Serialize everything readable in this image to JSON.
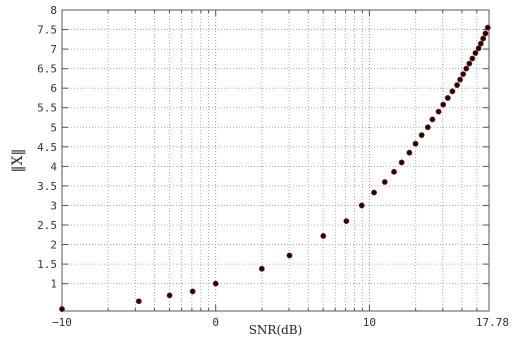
{
  "chart_data": {
    "type": "scatter",
    "title": "",
    "xlabel": "SNR(dB)",
    "ylabel": "‖X‖",
    "xlim": [
      -10,
      17.78
    ],
    "ylim": [
      0.3,
      8
    ],
    "xticks": [
      -10,
      0,
      10,
      17.78
    ],
    "xtick_labels": [
      "−10",
      "0",
      "10",
      "17.78"
    ],
    "yticks": [
      1,
      1.5,
      2,
      2.5,
      3,
      3.5,
      4,
      4.5,
      5,
      5.5,
      6,
      6.5,
      7,
      7.5,
      8
    ],
    "ytick_labels": [
      "1",
      "1.5",
      "2",
      "2.5",
      "3",
      "3.5",
      "4",
      "4.5",
      "5",
      "5.5",
      "6",
      "6.5",
      "7",
      "7.5",
      "8"
    ],
    "x_minor_ticks": [
      -7,
      -5.23,
      -3.98,
      -3.01,
      -2.22,
      -1.55,
      -0.97,
      -0.46,
      3.01,
      4.77,
      6.02,
      6.99,
      7.78,
      8.45,
      9.03,
      9.54,
      13.01,
      14.77,
      16.02,
      16.99
    ],
    "grid": true,
    "marker_color": "#1a0a0a",
    "marker_edge_color": "#8b1a1a",
    "series": [
      {
        "x": [
          -10,
          -5,
          -3,
          -1.5,
          0,
          3,
          4.8,
          7,
          8.5,
          9.5,
          10.3,
          11,
          11.6,
          12.1,
          12.6,
          13,
          13.4,
          13.8,
          14.1,
          14.5,
          14.8,
          15.1,
          15.4,
          15.7,
          15.9,
          16.1,
          16.3,
          16.5,
          16.7,
          16.9,
          17.1,
          17.25,
          17.4,
          17.55,
          17.7
        ],
        "y": [
          0.35,
          0.55,
          0.7,
          0.8,
          1.0,
          1.38,
          1.72,
          2.22,
          2.6,
          3.0,
          3.33,
          3.6,
          3.86,
          4.1,
          4.35,
          4.58,
          4.8,
          5.0,
          5.2,
          5.4,
          5.58,
          5.75,
          5.92,
          6.08,
          6.22,
          6.36,
          6.5,
          6.63,
          6.76,
          6.9,
          7.02,
          7.14,
          7.27,
          7.4,
          7.55
        ]
      }
    ]
  }
}
